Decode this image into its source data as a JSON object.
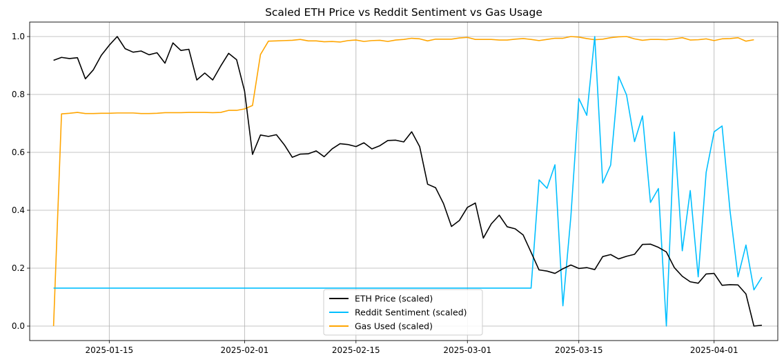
{
  "chart_data": {
    "type": "line",
    "title": "Scaled ETH Price vs Reddit Sentiment vs Gas Usage",
    "xlabel": "",
    "ylabel": "",
    "ylim": [
      -0.05,
      1.05
    ],
    "xlim": [
      "2025-01-05",
      "2025-04-09"
    ],
    "grid": true,
    "legend_position": "bottom-center",
    "x_ticks": [
      "2025-01-15",
      "2025-02-01",
      "2025-02-15",
      "2025-03-01",
      "2025-03-15",
      "2025-04-01"
    ],
    "y_ticks": [
      0.0,
      0.2,
      0.4,
      0.6,
      0.8,
      1.0
    ],
    "start_date": "2025-01-08",
    "series": [
      {
        "name": "ETH Price (scaled)",
        "color": "#000000",
        "values": [
          0.918,
          0.928,
          0.924,
          0.927,
          0.854,
          0.885,
          0.935,
          0.97,
          1.0,
          0.958,
          0.946,
          0.95,
          0.937,
          0.944,
          0.908,
          0.978,
          0.952,
          0.956,
          0.85,
          0.874,
          0.85,
          0.898,
          0.942,
          0.92,
          0.812,
          0.593,
          0.66,
          0.655,
          0.661,
          0.626,
          0.583,
          0.594,
          0.595,
          0.605,
          0.585,
          0.612,
          0.63,
          0.627,
          0.62,
          0.633,
          0.612,
          0.623,
          0.641,
          0.642,
          0.636,
          0.671,
          0.62,
          0.49,
          0.478,
          0.423,
          0.344,
          0.365,
          0.41,
          0.425,
          0.304,
          0.353,
          0.383,
          0.343,
          0.336,
          0.315,
          0.255,
          0.194,
          0.19,
          0.182,
          0.198,
          0.211,
          0.199,
          0.202,
          0.195,
          0.24,
          0.247,
          0.232,
          0.241,
          0.248,
          0.282,
          0.283,
          0.272,
          0.256,
          0.202,
          0.172,
          0.153,
          0.148,
          0.18,
          0.182,
          0.141,
          0.143,
          0.142,
          0.111,
          0.0,
          0.003
        ]
      },
      {
        "name": "Reddit Sentiment (scaled)",
        "color": "#00bfff",
        "values": [
          0.131,
          0.131,
          0.131,
          0.131,
          0.131,
          0.131,
          0.131,
          0.131,
          0.131,
          0.131,
          0.131,
          0.131,
          0.131,
          0.131,
          0.131,
          0.131,
          0.131,
          0.131,
          0.131,
          0.131,
          0.131,
          0.131,
          0.131,
          0.131,
          0.131,
          0.131,
          0.131,
          0.131,
          0.131,
          0.131,
          0.131,
          0.131,
          0.131,
          0.131,
          0.131,
          0.131,
          0.131,
          0.131,
          0.131,
          0.131,
          0.131,
          0.131,
          0.131,
          0.131,
          0.131,
          0.131,
          0.131,
          0.131,
          0.131,
          0.131,
          0.131,
          0.131,
          0.131,
          0.131,
          0.131,
          0.131,
          0.131,
          0.131,
          0.131,
          0.131,
          0.131,
          0.505,
          0.476,
          0.557,
          0.07,
          0.378,
          0.786,
          0.728,
          1.0,
          0.494,
          0.556,
          0.862,
          0.798,
          0.637,
          0.726,
          0.427,
          0.475,
          0.0,
          0.67,
          0.26,
          0.468,
          0.17,
          0.531,
          0.671,
          0.691,
          0.398,
          0.17,
          0.28,
          0.125,
          0.169
        ]
      },
      {
        "name": "Gas Used (scaled)",
        "color": "#ffa500",
        "values": [
          0.0,
          0.733,
          0.735,
          0.738,
          0.734,
          0.734,
          0.735,
          0.735,
          0.736,
          0.736,
          0.736,
          0.734,
          0.734,
          0.735,
          0.737,
          0.737,
          0.737,
          0.738,
          0.738,
          0.738,
          0.737,
          0.738,
          0.745,
          0.745,
          0.75,
          0.762,
          0.938,
          0.984,
          0.985,
          0.986,
          0.987,
          0.99,
          0.985,
          0.985,
          0.982,
          0.983,
          0.981,
          0.986,
          0.988,
          0.983,
          0.986,
          0.987,
          0.983,
          0.988,
          0.99,
          0.994,
          0.992,
          0.985,
          0.991,
          0.991,
          0.991,
          0.995,
          0.997,
          0.99,
          0.99,
          0.99,
          0.988,
          0.988,
          0.991,
          0.993,
          0.99,
          0.986,
          0.99,
          0.994,
          0.994,
          1.0,
          0.998,
          0.993,
          0.989,
          0.991,
          0.996,
          0.999,
          1.0,
          0.992,
          0.987,
          0.99,
          0.99,
          0.989,
          0.992,
          0.996,
          0.988,
          0.989,
          0.992,
          0.986,
          0.992,
          0.993,
          0.996,
          0.984,
          0.989
        ]
      }
    ]
  }
}
